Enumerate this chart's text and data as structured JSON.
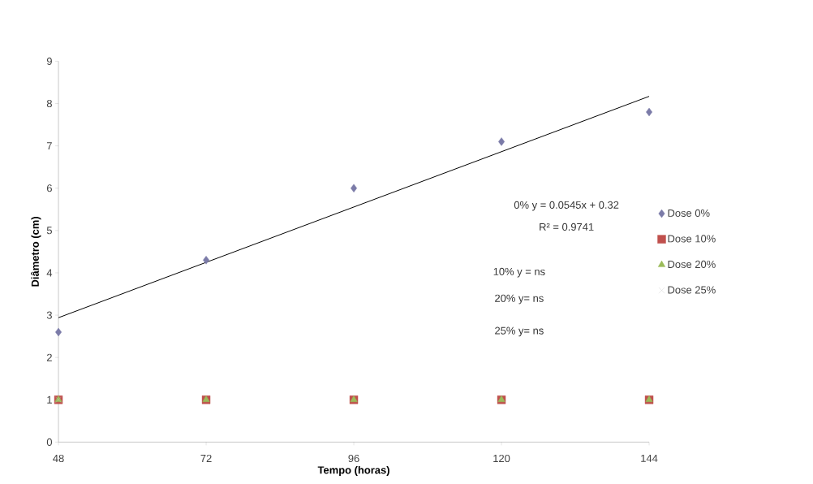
{
  "chart_data": {
    "type": "scatter",
    "xlabel": "Tempo (horas)",
    "ylabel": "Diâmetro (cm)",
    "x": [
      48,
      72,
      96,
      120,
      144
    ],
    "series": [
      {
        "name": "Dose 0%",
        "color": "#7b7ba8",
        "marker": "diamond",
        "values": [
          2.6,
          4.3,
          6.0,
          7.1,
          7.8
        ]
      },
      {
        "name": "Dose 10%",
        "color": "#c0504d",
        "marker": "square",
        "values": [
          1,
          1,
          1,
          1,
          1
        ]
      },
      {
        "name": "Dose 20%",
        "color": "#9bbb59",
        "marker": "triangle",
        "values": [
          1,
          1,
          1,
          1,
          1
        ]
      },
      {
        "name": "Dose 25%",
        "color": "#c8c8c8",
        "marker": "cross",
        "values": [
          1,
          null,
          null,
          null,
          null
        ]
      },
      {
        "type": "line",
        "color": "#000000",
        "x": [
          48,
          144
        ],
        "values": [
          2.94,
          8.17
        ]
      }
    ],
    "xlim": [
      48,
      144
    ],
    "xticks": [
      48,
      72,
      96,
      120,
      144
    ],
    "ylim": [
      0,
      9
    ],
    "yticks": [
      0,
      1,
      2,
      3,
      4,
      5,
      6,
      7,
      8,
      9
    ],
    "grid": false,
    "legend": "right",
    "annotations": [
      "0% y = 0.0545x + 0.32",
      "R² = 0.9741",
      "10% y = ns",
      "20% y= ns",
      "25% y= ns"
    ]
  }
}
